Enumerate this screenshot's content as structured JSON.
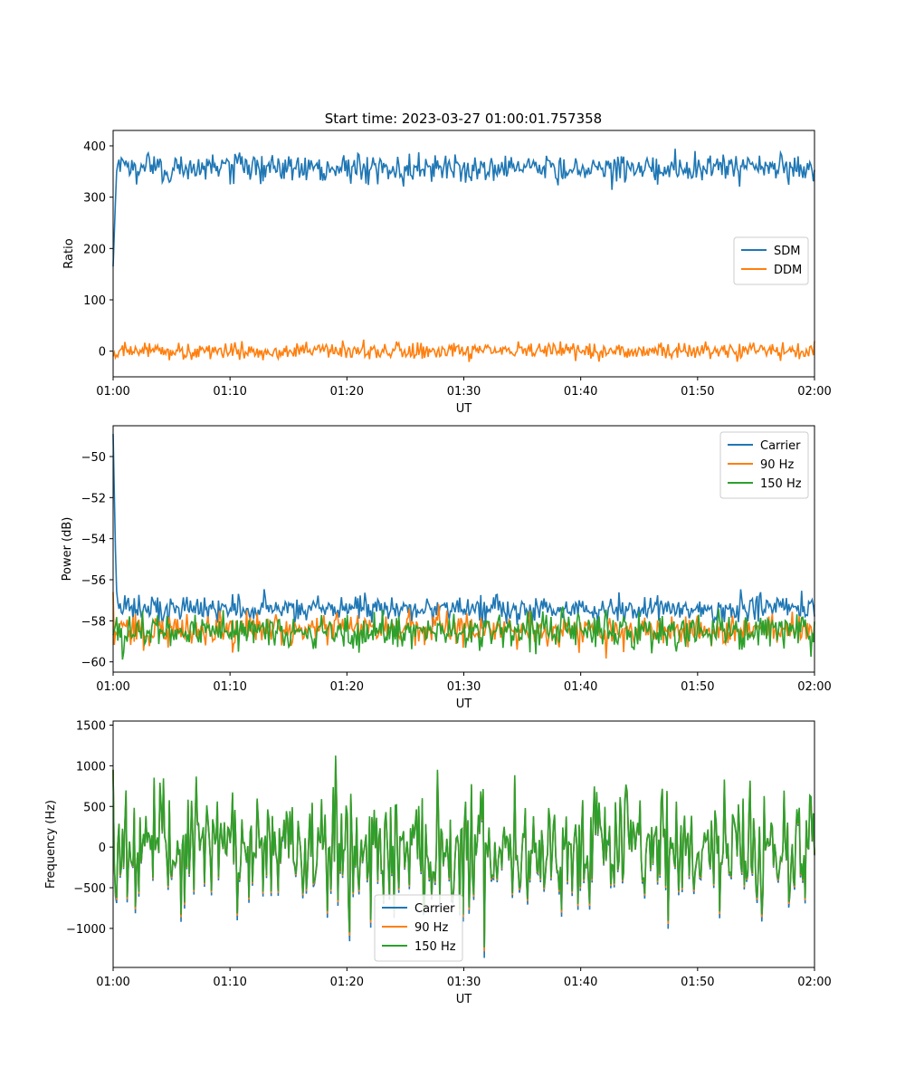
{
  "title": "Start time: 2023-03-27 01:00:01.757358",
  "chart_data": [
    {
      "type": "line",
      "title": "Start time: 2023-03-27 01:00:01.757358",
      "xlabel": "UT",
      "ylabel": "Ratio",
      "x_ticks": [
        "01:00",
        "01:10",
        "01:20",
        "01:30",
        "01:40",
        "01:50",
        "02:00"
      ],
      "x_range": [
        "01:00",
        "02:00"
      ],
      "ylim": [
        -50,
        430
      ],
      "y_ticks": [
        0,
        100,
        200,
        300,
        400
      ],
      "legend_loc": "center-right",
      "series": [
        {
          "name": "SDM",
          "color": "#1f77b4",
          "start": 165,
          "mean": 357,
          "spread": 14
        },
        {
          "name": "DDM",
          "color": "#ff7f0e",
          "start": -10,
          "mean": 0,
          "spread": 8
        }
      ]
    },
    {
      "type": "line",
      "title": "",
      "xlabel": "UT",
      "ylabel": "Power (dB)",
      "x_ticks": [
        "01:00",
        "01:10",
        "01:20",
        "01:30",
        "01:40",
        "01:50",
        "02:00"
      ],
      "x_range": [
        "01:00",
        "02:00"
      ],
      "ylim": [
        -60.5,
        -48.5
      ],
      "y_ticks": [
        -60,
        -58,
        -56,
        -54,
        -52,
        -50
      ],
      "legend_loc": "top-right",
      "series": [
        {
          "name": "Carrier",
          "color": "#1f77b4",
          "start": -48.9,
          "mean": -57.4,
          "spread": 0.32
        },
        {
          "name": "90 Hz",
          "color": "#ff7f0e",
          "start": -56.6,
          "mean": -58.4,
          "spread": 0.38
        },
        {
          "name": "150 Hz",
          "color": "#2ca02c",
          "start": -58.7,
          "mean": -58.5,
          "spread": 0.45
        }
      ]
    },
    {
      "type": "line",
      "title": "",
      "xlabel": "UT",
      "ylabel": "Frequency (Hz)",
      "x_ticks": [
        "01:00",
        "01:10",
        "01:20",
        "01:30",
        "01:40",
        "01:50",
        "02:00"
      ],
      "x_range": [
        "01:00",
        "02:00"
      ],
      "ylim": [
        -1480,
        1550
      ],
      "y_ticks": [
        -1000,
        -500,
        0,
        500,
        1000,
        1500
      ],
      "legend_loc": "lower-center",
      "series": [
        {
          "name": "Carrier",
          "color": "#1f77b4",
          "start": 950,
          "mean": 0,
          "spread": 380,
          "offset": -40
        },
        {
          "name": "90 Hz",
          "color": "#ff7f0e",
          "start": 950,
          "mean": 0,
          "spread": 380,
          "offset": -15
        },
        {
          "name": "150 Hz",
          "color": "#2ca02c",
          "start": 950,
          "mean": 0,
          "spread": 380,
          "offset": 0
        }
      ]
    }
  ]
}
